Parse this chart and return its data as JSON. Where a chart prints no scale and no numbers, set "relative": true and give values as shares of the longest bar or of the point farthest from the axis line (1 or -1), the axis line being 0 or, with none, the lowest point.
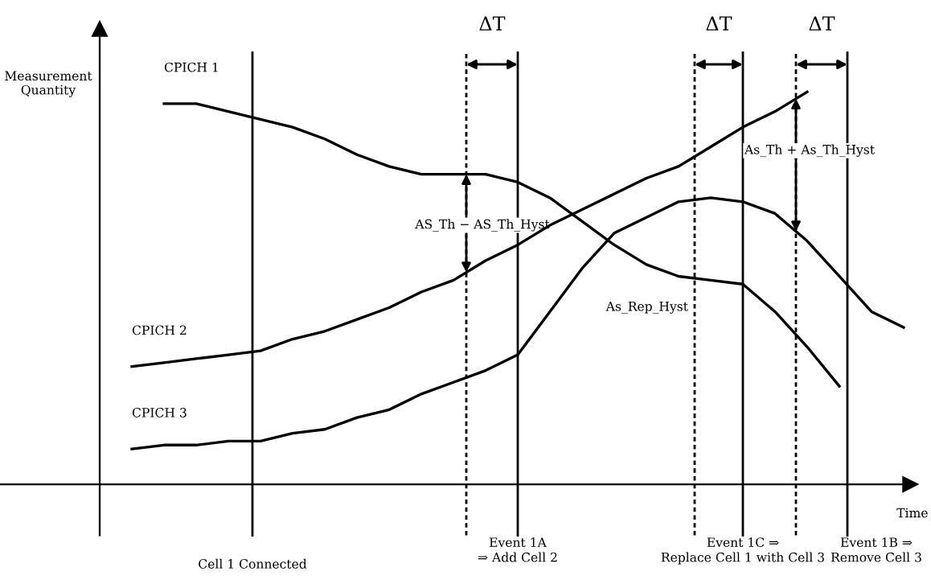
{
  "chart_data": {
    "type": "line",
    "relative": true,
    "line_style": "solid",
    "xlabel": "Time",
    "ylabel": "Measurement\nQuantity",
    "categories": [
      null,
      null,
      null,
      null,
      null,
      null,
      null,
      null,
      null,
      null,
      null,
      null,
      null,
      null,
      null,
      null,
      null,
      null,
      null,
      null,
      null,
      null,
      null,
      null,
      null,
      null
    ],
    "series": [
      {
        "name": "CPICH 1",
        "color": "#000000",
        "values": [
          null,
          null,
          0.97,
          0.97,
          0.95,
          0.93,
          0.91,
          0.88,
          0.84,
          0.81,
          0.79,
          0.79,
          0.79,
          0.77,
          0.73,
          0.67,
          0.61,
          0.56,
          0.53,
          0.52,
          0.51,
          0.44,
          0.35,
          0.25,
          null,
          null
        ]
      },
      {
        "name": "CPICH 2",
        "color": "#000000",
        "values": [
          null,
          0.3,
          0.31,
          0.32,
          0.33,
          0.34,
          0.37,
          0.39,
          0.42,
          0.45,
          0.49,
          0.52,
          0.57,
          0.61,
          0.66,
          0.7,
          0.74,
          0.78,
          0.81,
          0.86,
          0.91,
          0.95,
          1,
          null,
          null,
          null
        ]
      },
      {
        "name": "CPICH 3",
        "color": "#000000",
        "values": [
          null,
          0.09,
          0.1,
          0.1,
          0.11,
          0.11,
          0.13,
          0.14,
          0.17,
          0.19,
          0.23,
          0.26,
          0.29,
          0.33,
          0.44,
          0.55,
          0.64,
          0.68,
          0.72,
          0.73,
          0.72,
          0.69,
          0.62,
          0.53,
          0.44,
          0.4
        ]
      }
    ],
    "annotations": [
      "ΔT",
      "ΔT",
      "ΔT",
      "AS_Th − AS_Th_Hyst",
      "As_Rep_Hyst",
      "As_Th + As_Th_Hyst",
      "Cell 1 Connected",
      "Event 1A\n⇒ Add Cell 2",
      "Event 1C ⇒\nReplace Cell 1 with Cell 3",
      "Event 1B ⇒\nRemove Cell 3"
    ]
  }
}
